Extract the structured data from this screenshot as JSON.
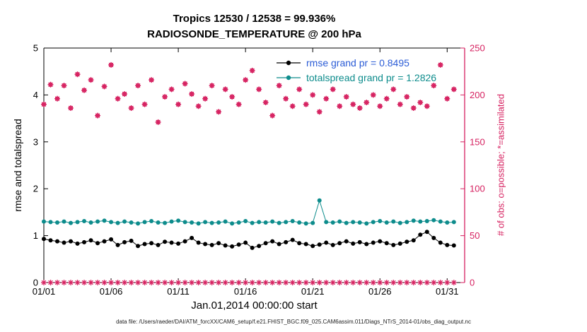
{
  "chart_data": {
    "type": "line",
    "title": "Tropics 12530 / 12538 = 99.936%",
    "subtitle": "RADIOSONDE_TEMPERATURE @ 200 hPa",
    "xlabel": "Jan.01,2014 00:00:00 start",
    "ylabel_left": "rmse and totalspread",
    "ylabel_right": "# of obs: o=possible; *=assimilated",
    "footer": "data file: /Users/raeder/DAI/ATM_forcXX/CAM6_setup/f.e21.FHIST_BGC.f09_025.CAM6assim.011/Diags_NTrS_2014-01/obs_diag_output.nc",
    "xlim": [
      1,
      32.3
    ],
    "xticks": {
      "values": [
        1,
        6,
        11,
        16,
        21,
        26,
        31
      ],
      "labels": [
        "01/01",
        "01/06",
        "01/11",
        "01/16",
        "01/21",
        "01/26",
        "01/31"
      ]
    },
    "ylim_left": [
      0,
      5
    ],
    "yticks_left": [
      0,
      1,
      2,
      3,
      4,
      5
    ],
    "ylim_right": [
      0,
      250
    ],
    "yticks_right": [
      0,
      50,
      100,
      150,
      200,
      250
    ],
    "axis_color_left": "#000000",
    "axis_color_right": "#d62160",
    "legend_position": "upper-center-right, no box",
    "grid": false,
    "x": [
      1,
      1.5,
      2,
      2.5,
      3,
      3.5,
      4,
      4.5,
      5,
      5.5,
      6,
      6.5,
      7,
      7.5,
      8,
      8.5,
      9,
      9.5,
      10,
      10.5,
      11,
      11.5,
      12,
      12.5,
      13,
      13.5,
      14,
      14.5,
      15,
      15.5,
      16,
      16.5,
      17,
      17.5,
      18,
      18.5,
      19,
      19.5,
      20,
      20.5,
      21,
      21.5,
      22,
      22.5,
      23,
      23.5,
      24,
      24.5,
      25,
      25.5,
      26,
      26.5,
      27,
      27.5,
      28,
      28.5,
      29,
      29.5,
      30,
      30.5,
      31,
      31.5
    ],
    "series": [
      {
        "name": "rmse",
        "legend": "rmse grand pr = 0.8495",
        "grand_mean": 0.8495,
        "axis": "left",
        "color": "#000000",
        "legend_color": "#2b5cd6",
        "marker": "dot",
        "line": true,
        "values": [
          0.93,
          0.9,
          0.88,
          0.85,
          0.88,
          0.83,
          0.86,
          0.9,
          0.84,
          0.88,
          0.92,
          0.8,
          0.86,
          0.89,
          0.78,
          0.82,
          0.84,
          0.8,
          0.87,
          0.85,
          0.83,
          0.88,
          0.95,
          0.85,
          0.82,
          0.8,
          0.84,
          0.79,
          0.77,
          0.81,
          0.85,
          0.74,
          0.78,
          0.84,
          0.88,
          0.82,
          0.86,
          0.91,
          0.84,
          0.82,
          0.78,
          0.81,
          0.85,
          0.8,
          0.84,
          0.88,
          0.83,
          0.86,
          0.82,
          0.85,
          0.88,
          0.84,
          0.8,
          0.83,
          0.87,
          0.9,
          1.02,
          1.08,
          0.95,
          0.85,
          0.8,
          0.79
        ]
      },
      {
        "name": "totalspread",
        "legend": "totalspread grand pr = 1.2826",
        "grand_mean": 1.2826,
        "axis": "left",
        "color": "#0d8c8c",
        "legend_color": "#0d8c8c",
        "marker": "dot",
        "line": true,
        "values": [
          1.3,
          1.29,
          1.28,
          1.3,
          1.27,
          1.29,
          1.31,
          1.28,
          1.3,
          1.32,
          1.29,
          1.27,
          1.3,
          1.28,
          1.26,
          1.29,
          1.31,
          1.28,
          1.27,
          1.3,
          1.32,
          1.29,
          1.28,
          1.26,
          1.29,
          1.27,
          1.28,
          1.3,
          1.26,
          1.28,
          1.31,
          1.27,
          1.29,
          1.28,
          1.3,
          1.27,
          1.29,
          1.31,
          1.28,
          1.26,
          1.27,
          1.75,
          1.29,
          1.28,
          1.3,
          1.27,
          1.29,
          1.28,
          1.26,
          1.29,
          1.31,
          1.28,
          1.3,
          1.27,
          1.29,
          1.32,
          1.3,
          1.31,
          1.33,
          1.3,
          1.28,
          1.29
        ]
      },
      {
        "name": "num-obs-possible-and-assimilated",
        "axis": "right",
        "color": "#d62160",
        "marker": "asterisk-circle",
        "line": false,
        "values": [
          190,
          211,
          196,
          210,
          186,
          222,
          205,
          216,
          178,
          209,
          232,
          196,
          201,
          186,
          210,
          190,
          216,
          171,
          198,
          206,
          190,
          212,
          201,
          188,
          196,
          210,
          182,
          206,
          198,
          190,
          216,
          226,
          206,
          192,
          178,
          210,
          196,
          188,
          206,
          190,
          200,
          182,
          196,
          206,
          188,
          198,
          190,
          186,
          192,
          200,
          188,
          196,
          206,
          190,
          198,
          186,
          192,
          188,
          210,
          232,
          196,
          206
        ]
      },
      {
        "name": "marker-row-at-zero",
        "axis": "left",
        "color": "#d62160",
        "marker": "asterisk",
        "line": false,
        "constant": 0
      }
    ]
  }
}
